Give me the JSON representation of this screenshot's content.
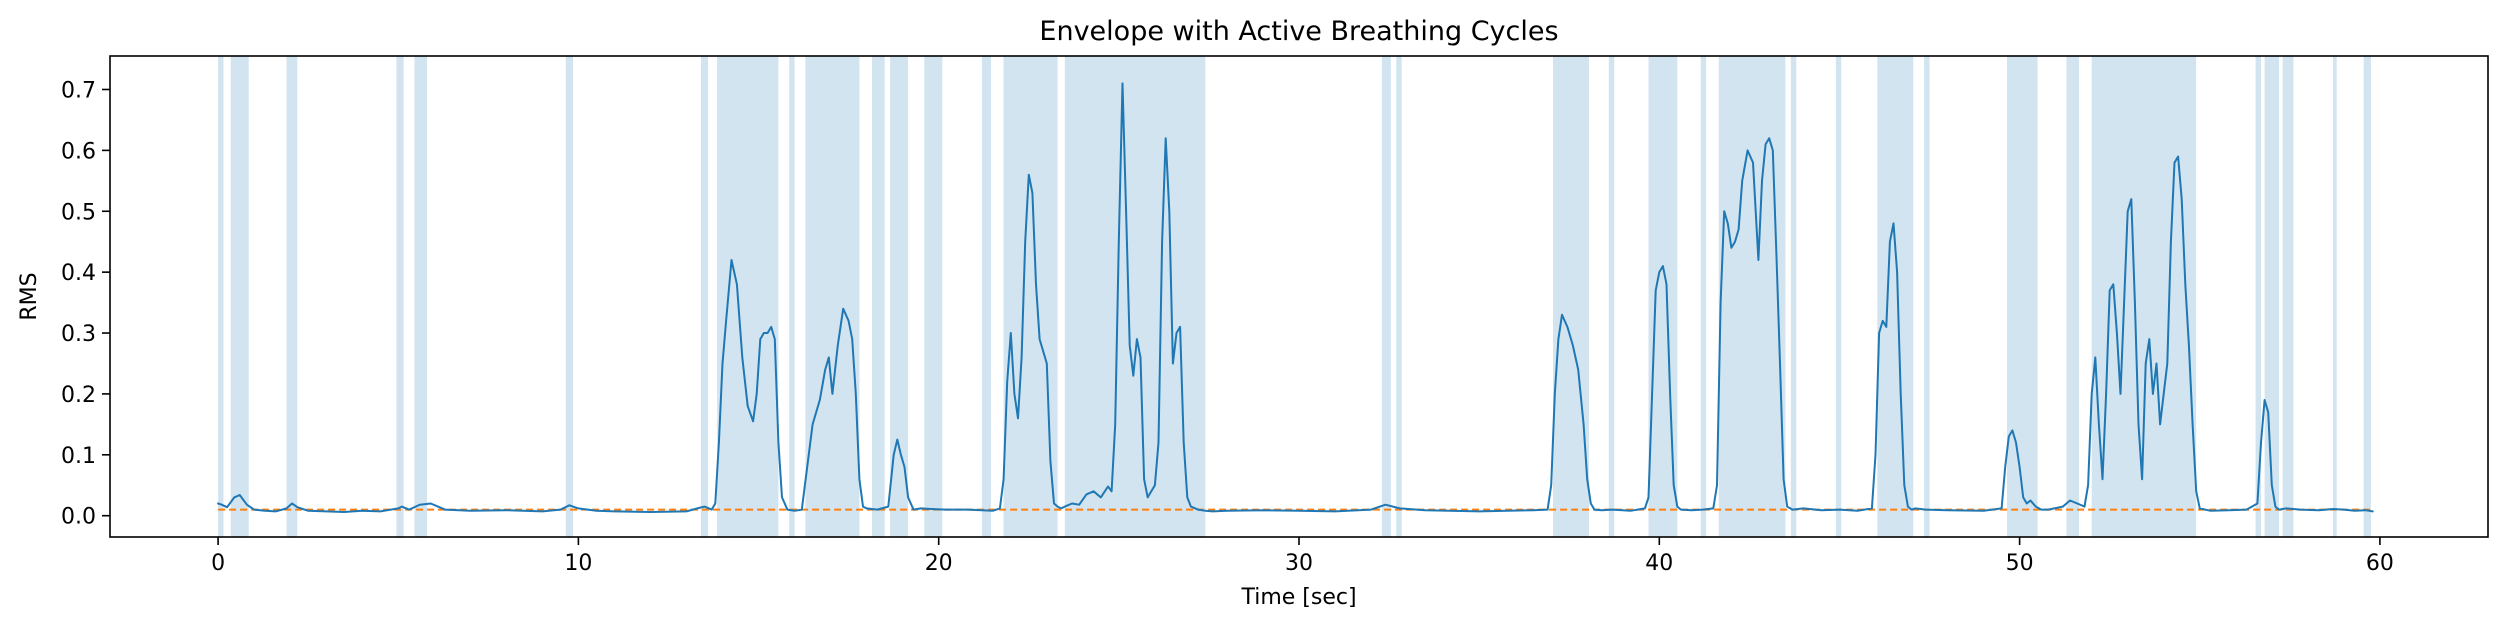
{
  "chart_data": {
    "type": "line",
    "title": "Envelope with Active Breathing Cycles",
    "xlabel": "Time [sec]",
    "ylabel": "RMS",
    "xlim": [
      -3,
      63
    ],
    "ylim": [
      -0.035,
      0.755
    ],
    "x_ticks": [
      0,
      10,
      20,
      30,
      40,
      50,
      60
    ],
    "y_ticks": [
      0.0,
      0.1,
      0.2,
      0.3,
      0.4,
      0.5,
      0.6,
      0.7
    ],
    "y_tick_labels": [
      "0.0",
      "0.1",
      "0.2",
      "0.3",
      "0.4",
      "0.5",
      "0.6",
      "0.7"
    ],
    "grid": false,
    "colors": {
      "envelope": "#1f77b4",
      "threshold": "#ff7f0e",
      "active_span": "#1f77b4"
    },
    "threshold": 0.01,
    "active_spans": [
      [
        0.0,
        0.15
      ],
      [
        0.35,
        0.85
      ],
      [
        1.9,
        2.2
      ],
      [
        4.95,
        5.15
      ],
      [
        5.45,
        5.8
      ],
      [
        9.65,
        9.85
      ],
      [
        13.4,
        13.6
      ],
      [
        13.85,
        15.55
      ],
      [
        15.85,
        16.0
      ],
      [
        16.3,
        17.8
      ],
      [
        18.15,
        18.5
      ],
      [
        18.65,
        19.15
      ],
      [
        19.6,
        20.1
      ],
      [
        21.2,
        21.45
      ],
      [
        21.8,
        23.3
      ],
      [
        23.5,
        27.4
      ],
      [
        32.3,
        32.55
      ],
      [
        32.7,
        32.85
      ],
      [
        37.05,
        38.05
      ],
      [
        38.6,
        38.75
      ],
      [
        39.7,
        40.5
      ],
      [
        41.15,
        41.3
      ],
      [
        41.65,
        43.5
      ],
      [
        43.65,
        43.8
      ],
      [
        44.9,
        45.05
      ],
      [
        46.05,
        47.05
      ],
      [
        47.35,
        47.5
      ],
      [
        49.65,
        50.5
      ],
      [
        51.3,
        51.65
      ],
      [
        52.0,
        54.9
      ],
      [
        56.55,
        56.7
      ],
      [
        56.8,
        57.2
      ],
      [
        57.3,
        57.6
      ],
      [
        58.7,
        58.8
      ],
      [
        59.55,
        59.75
      ]
    ],
    "series": [
      {
        "x": [
          0,
          0.1,
          0.25,
          0.45,
          0.6,
          0.8,
          1.0,
          1.3,
          1.6,
          1.9,
          2.05,
          2.2,
          2.5,
          3.0,
          3.5,
          4.0,
          4.5,
          5.0,
          5.1,
          5.3,
          5.6,
          5.9,
          6.3,
          7,
          8,
          9,
          9.5,
          9.75,
          10,
          10.5,
          11,
          12,
          13,
          13.3,
          13.5,
          13.7,
          13.8,
          13.9,
          14.0,
          14.1,
          14.25,
          14.4,
          14.55,
          14.7,
          14.85,
          14.95,
          15.05,
          15.15,
          15.25,
          15.35,
          15.45,
          15.55,
          15.65,
          15.8,
          16.0,
          16.2,
          16.35,
          16.5,
          16.7,
          16.85,
          16.95,
          17.05,
          17.2,
          17.35,
          17.5,
          17.6,
          17.7,
          17.8,
          17.9,
          18.0,
          18.3,
          18.6,
          18.75,
          18.85,
          18.95,
          19.05,
          19.15,
          19.3,
          19.5,
          19.8,
          20.2,
          20.8,
          21.2,
          21.5,
          21.7,
          21.8,
          21.9,
          22.0,
          22.1,
          22.2,
          22.3,
          22.4,
          22.5,
          22.6,
          22.7,
          22.8,
          22.9,
          23.0,
          23.1,
          23.2,
          23.3,
          23.4,
          23.5,
          23.7,
          23.9,
          24.1,
          24.3,
          24.5,
          24.7,
          24.8,
          24.9,
          25.0,
          25.1,
          25.2,
          25.3,
          25.4,
          25.5,
          25.6,
          25.7,
          25.8,
          25.9,
          26.0,
          26.1,
          26.2,
          26.3,
          26.4,
          26.5,
          26.6,
          26.7,
          26.8,
          26.9,
          27.0,
          27.2,
          27.4,
          27.6,
          28,
          29,
          30,
          31,
          32,
          32.4,
          32.8,
          33.5,
          35,
          36.5,
          36.9,
          37.0,
          37.1,
          37.2,
          37.3,
          37.45,
          37.6,
          37.75,
          37.9,
          38.0,
          38.1,
          38.2,
          38.4,
          38.7,
          39.2,
          39.6,
          39.7,
          39.8,
          39.9,
          40.0,
          40.1,
          40.2,
          40.3,
          40.4,
          40.5,
          40.6,
          40.9,
          41.2,
          41.5,
          41.6,
          41.7,
          41.8,
          41.9,
          42.0,
          42.1,
          42.2,
          42.3,
          42.45,
          42.6,
          42.75,
          42.85,
          42.95,
          43.05,
          43.15,
          43.25,
          43.35,
          43.45,
          43.55,
          43.7,
          44.0,
          44.5,
          45.0,
          45.5,
          45.9,
          46.0,
          46.1,
          46.2,
          46.3,
          46.4,
          46.5,
          46.6,
          46.7,
          46.8,
          46.9,
          47.0,
          47.1,
          47.4,
          48,
          49,
          49.5,
          49.6,
          49.7,
          49.8,
          49.9,
          50.0,
          50.1,
          50.2,
          50.3,
          50.45,
          50.6,
          50.8,
          51.2,
          51.4,
          51.6,
          51.8,
          51.9,
          52.0,
          52.1,
          52.2,
          52.3,
          52.4,
          52.5,
          52.6,
          52.7,
          52.8,
          52.9,
          53.0,
          53.1,
          53.2,
          53.3,
          53.4,
          53.5,
          53.6,
          53.7,
          53.8,
          53.9,
          54.0,
          54.1,
          54.2,
          54.3,
          54.4,
          54.5,
          54.6,
          54.7,
          54.8,
          54.9,
          55.0,
          55.3,
          55.8,
          56.3,
          56.6,
          56.7,
          56.8,
          56.9,
          57.0,
          57.1,
          57.2,
          57.4,
          57.8,
          58.3,
          58.7,
          59.0,
          59.3,
          59.6,
          59.8
        ],
        "y": [
          0.02,
          0.018,
          0.014,
          0.03,
          0.034,
          0.018,
          0.01,
          0.008,
          0.007,
          0.012,
          0.02,
          0.014,
          0.008,
          0.007,
          0.006,
          0.008,
          0.007,
          0.012,
          0.015,
          0.01,
          0.018,
          0.02,
          0.01,
          0.008,
          0.009,
          0.007,
          0.01,
          0.017,
          0.012,
          0.008,
          0.007,
          0.006,
          0.007,
          0.012,
          0.015,
          0.01,
          0.02,
          0.12,
          0.25,
          0.32,
          0.42,
          0.38,
          0.26,
          0.18,
          0.155,
          0.2,
          0.29,
          0.3,
          0.3,
          0.31,
          0.29,
          0.12,
          0.03,
          0.01,
          0.008,
          0.01,
          0.08,
          0.15,
          0.19,
          0.24,
          0.26,
          0.2,
          0.28,
          0.34,
          0.32,
          0.29,
          0.2,
          0.06,
          0.015,
          0.012,
          0.01,
          0.015,
          0.1,
          0.125,
          0.1,
          0.08,
          0.03,
          0.01,
          0.012,
          0.011,
          0.01,
          0.01,
          0.009,
          0.008,
          0.012,
          0.06,
          0.22,
          0.3,
          0.2,
          0.16,
          0.26,
          0.45,
          0.56,
          0.53,
          0.38,
          0.29,
          0.27,
          0.25,
          0.09,
          0.02,
          0.015,
          0.012,
          0.015,
          0.02,
          0.018,
          0.035,
          0.04,
          0.03,
          0.048,
          0.04,
          0.15,
          0.45,
          0.71,
          0.5,
          0.28,
          0.23,
          0.29,
          0.26,
          0.06,
          0.03,
          0.04,
          0.05,
          0.12,
          0.45,
          0.62,
          0.5,
          0.25,
          0.3,
          0.31,
          0.12,
          0.03,
          0.015,
          0.01,
          0.008,
          0.007,
          0.008,
          0.009,
          0.008,
          0.007,
          0.01,
          0.018,
          0.012,
          0.009,
          0.007,
          0.009,
          0.01,
          0.05,
          0.2,
          0.29,
          0.33,
          0.31,
          0.28,
          0.24,
          0.15,
          0.06,
          0.02,
          0.01,
          0.009,
          0.01,
          0.008,
          0.012,
          0.03,
          0.2,
          0.37,
          0.4,
          0.41,
          0.38,
          0.2,
          0.05,
          0.015,
          0.01,
          0.009,
          0.01,
          0.012,
          0.05,
          0.35,
          0.5,
          0.48,
          0.44,
          0.45,
          0.47,
          0.55,
          0.6,
          0.58,
          0.42,
          0.55,
          0.61,
          0.62,
          0.6,
          0.43,
          0.25,
          0.06,
          0.015,
          0.01,
          0.012,
          0.009,
          0.01,
          0.008,
          0.012,
          0.1,
          0.3,
          0.32,
          0.31,
          0.45,
          0.48,
          0.4,
          0.2,
          0.05,
          0.015,
          0.01,
          0.012,
          0.01,
          0.009,
          0.008,
          0.012,
          0.08,
          0.13,
          0.14,
          0.12,
          0.08,
          0.03,
          0.02,
          0.025,
          0.015,
          0.01,
          0.01,
          0.015,
          0.025,
          0.02,
          0.015,
          0.05,
          0.2,
          0.26,
          0.15,
          0.06,
          0.2,
          0.37,
          0.38,
          0.3,
          0.2,
          0.35,
          0.5,
          0.52,
          0.35,
          0.15,
          0.06,
          0.25,
          0.29,
          0.2,
          0.25,
          0.15,
          0.2,
          0.25,
          0.45,
          0.58,
          0.59,
          0.52,
          0.38,
          0.28,
          0.15,
          0.04,
          0.012,
          0.008,
          0.009,
          0.01,
          0.02,
          0.12,
          0.19,
          0.17,
          0.05,
          0.015,
          0.01,
          0.012,
          0.01,
          0.009,
          0.011,
          0.01,
          0.008,
          0.009,
          0.007
        ]
      }
    ]
  }
}
